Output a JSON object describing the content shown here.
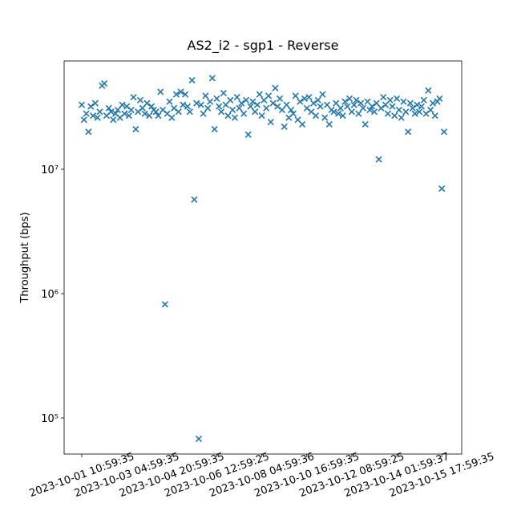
{
  "chart_data": {
    "type": "scatter",
    "title": "AS2_i2 - sgp1 - Reverse",
    "y_label": "Throughput (bps)",
    "categories": [
      "2023-10-01 10:59:35",
      null,
      null,
      null,
      null,
      null,
      null,
      null,
      null,
      null,
      null,
      null,
      null,
      null,
      null,
      null,
      null,
      null,
      null,
      null,
      "2023-10-03 04:59:35",
      null,
      null,
      null,
      null,
      null,
      null,
      null,
      null,
      null,
      null,
      null,
      null,
      null,
      null,
      null,
      null,
      null,
      null,
      null,
      "2023-10-04 20:59:35",
      null,
      null,
      null,
      null,
      null,
      null,
      null,
      null,
      null,
      null,
      null,
      null,
      null,
      null,
      null,
      null,
      null,
      null,
      null,
      "2023-10-06 12:59:25",
      null,
      null,
      null,
      null,
      null,
      null,
      null,
      null,
      null,
      null,
      null,
      null,
      null,
      null,
      null,
      null,
      null,
      null,
      null,
      "2023-10-08 04:59:36",
      null,
      null,
      null,
      null,
      null,
      null,
      null,
      null,
      null,
      null,
      null,
      null,
      null,
      null,
      null,
      null,
      null,
      null,
      null,
      "2023-10-10 16:59:35",
      null,
      null,
      null,
      null,
      null,
      null,
      null,
      null,
      null,
      null,
      null,
      null,
      null,
      null,
      null,
      null,
      null,
      null,
      null,
      "2023-10-12 08:59:25",
      null,
      null,
      null,
      null,
      null,
      null,
      null,
      null,
      null,
      null,
      null,
      null,
      null,
      null,
      null,
      null,
      null,
      null,
      null,
      "2023-10-14 01:59:37",
      null,
      null,
      null,
      null,
      null,
      null,
      null,
      null,
      null,
      null,
      null,
      null,
      null,
      null,
      null,
      null,
      null,
      null,
      null,
      "2023-10-15 17:59:35",
      null
    ],
    "values": [
      33000000.0,
      25000000.0,
      28000000.0,
      20000000.0,
      32000000.0,
      27000000.0,
      34000000.0,
      26000000.0,
      29000000.0,
      47000000.0,
      49000000.0,
      27000000.0,
      31000000.0,
      29000000.0,
      25000000.0,
      28000000.0,
      30000000.0,
      26000000.0,
      33000000.0,
      28000000.0,
      32000000.0,
      27000000.0,
      30000000.0,
      38000000.0,
      21000000.0,
      29000000.0,
      36000000.0,
      31000000.0,
      28000000.0,
      34000000.0,
      27000000.0,
      32000000.0,
      30000000.0,
      29000000.0,
      27000000.0,
      42000000.0,
      30000000.0,
      820000.0,
      28000000.0,
      35000000.0,
      26000000.0,
      31000000.0,
      40000000.0,
      29000000.0,
      42000000.0,
      33000000.0,
      40000000.0,
      32000000.0,
      29000000.0,
      52000000.0,
      5700000.0,
      34000000.0,
      68000.0,
      33000000.0,
      28000000.0,
      39000000.0,
      31000000.0,
      35000000.0,
      54000000.0,
      21000000.0,
      37000000.0,
      32000000.0,
      29000000.0,
      41000000.0,
      33000000.0,
      27000000.0,
      36000000.0,
      30000000.0,
      26000000.0,
      38000000.0,
      31000000.0,
      34000000.0,
      28000000.0,
      36000000.0,
      19000000.0,
      32000000.0,
      35000000.0,
      29000000.0,
      33000000.0,
      40000000.0,
      27000000.0,
      36000000.0,
      31000000.0,
      39000000.0,
      24000000.0,
      34000000.0,
      45000000.0,
      32000000.0,
      37000000.0,
      30000000.0,
      22000000.0,
      33000000.0,
      26000000.0,
      30000000.0,
      28000000.0,
      39000000.0,
      25000000.0,
      35000000.0,
      23000000.0,
      37000000.0,
      31000000.0,
      38000000.0,
      29000000.0,
      34000000.0,
      27000000.0,
      36000000.0,
      32000000.0,
      40000000.0,
      26000000.0,
      33000000.0,
      23000000.0,
      30000000.0,
      29000000.0,
      34000000.0,
      28000000.0,
      31000000.0,
      27000000.0,
      35000000.0,
      32000000.0,
      37000000.0,
      29000000.0,
      33000000.0,
      36000000.0,
      28000000.0,
      34000000.0,
      31000000.0,
      23000000.0,
      35000000.0,
      30000000.0,
      32000000.0,
      29000000.0,
      34000000.0,
      12000000.0,
      31000000.0,
      38000000.0,
      33000000.0,
      28000000.0,
      36000000.0,
      32000000.0,
      27000000.0,
      37000000.0,
      30000000.0,
      26000000.0,
      35000000.0,
      29000000.0,
      20000000.0,
      34000000.0,
      31000000.0,
      28000000.0,
      33000000.0,
      29000000.0,
      32000000.0,
      36000000.0,
      28000000.0,
      43000000.0,
      30000000.0,
      34000000.0,
      27000000.0,
      35000000.0,
      37000000.0,
      7000000.0,
      20000000.0
    ],
    "color": "#1f77b4",
    "marker": "x",
    "log_y": true,
    "ylim": [
      51300,
      74300000
    ],
    "yticks": [
      {
        "value": 100000,
        "label": "10⁵"
      },
      {
        "value": 1000000,
        "label": "10⁶"
      },
      {
        "value": 10000000,
        "label": "10⁷"
      }
    ]
  }
}
